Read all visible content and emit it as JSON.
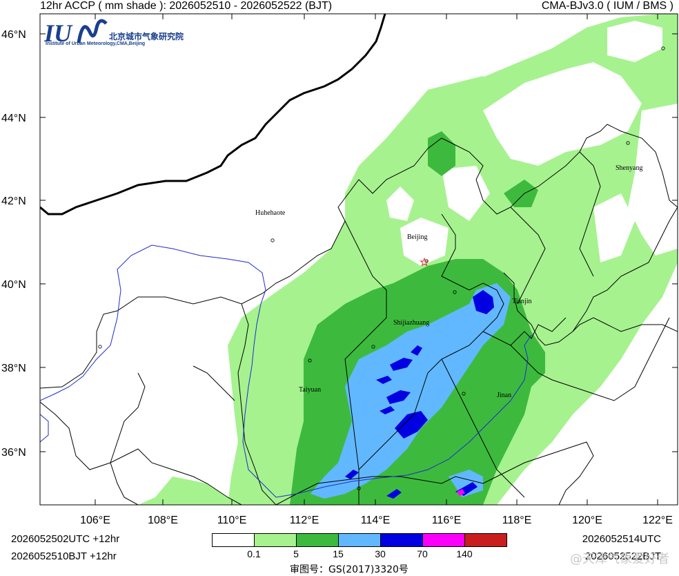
{
  "header": {
    "title_left": "12hr ACCP ( mm shade ): 2026052510 - 2026052522 (BJT)",
    "title_right": "CMA-BJv3.0 ( IUM / BMS )"
  },
  "logo": {
    "chinese": "北京城市气象研究院",
    "english": "Institute of Urban Meteorology,CMA,Beijing"
  },
  "axes": {
    "lat_labels": [
      "46°N",
      "44°N",
      "42°N",
      "40°N",
      "38°N",
      "36°N"
    ],
    "lon_labels": [
      "106°E",
      "108°E",
      "110°E",
      "112°E",
      "114°E",
      "116°E",
      "118°E",
      "120°E",
      "122°E"
    ]
  },
  "cities": [
    {
      "name": "Huhehaote"
    },
    {
      "name": "Beijing"
    },
    {
      "name": "Tianjin"
    },
    {
      "name": "Shijiazhuang"
    },
    {
      "name": "Taiyuan"
    },
    {
      "name": "Jinan"
    },
    {
      "name": "Shenyang"
    }
  ],
  "footer": {
    "utc_start": "2026052502UTC  +12hr",
    "bjt_start": "2026052510BJT  +12hr",
    "utc_end": "2026052514UTC",
    "bjt_end": "2026052522BJT",
    "approval": "审图号：GS(2017)3320号",
    "watermark": "@天津气象爱好者"
  },
  "colorbar": {
    "colors": [
      "#ffffff",
      "#a6f28f",
      "#3dba3d",
      "#61b8ff",
      "#0000e1",
      "#fa00fa",
      "#c81e1e"
    ],
    "labels": [
      "0.1",
      "5",
      "15",
      "30",
      "70",
      "140"
    ]
  }
}
